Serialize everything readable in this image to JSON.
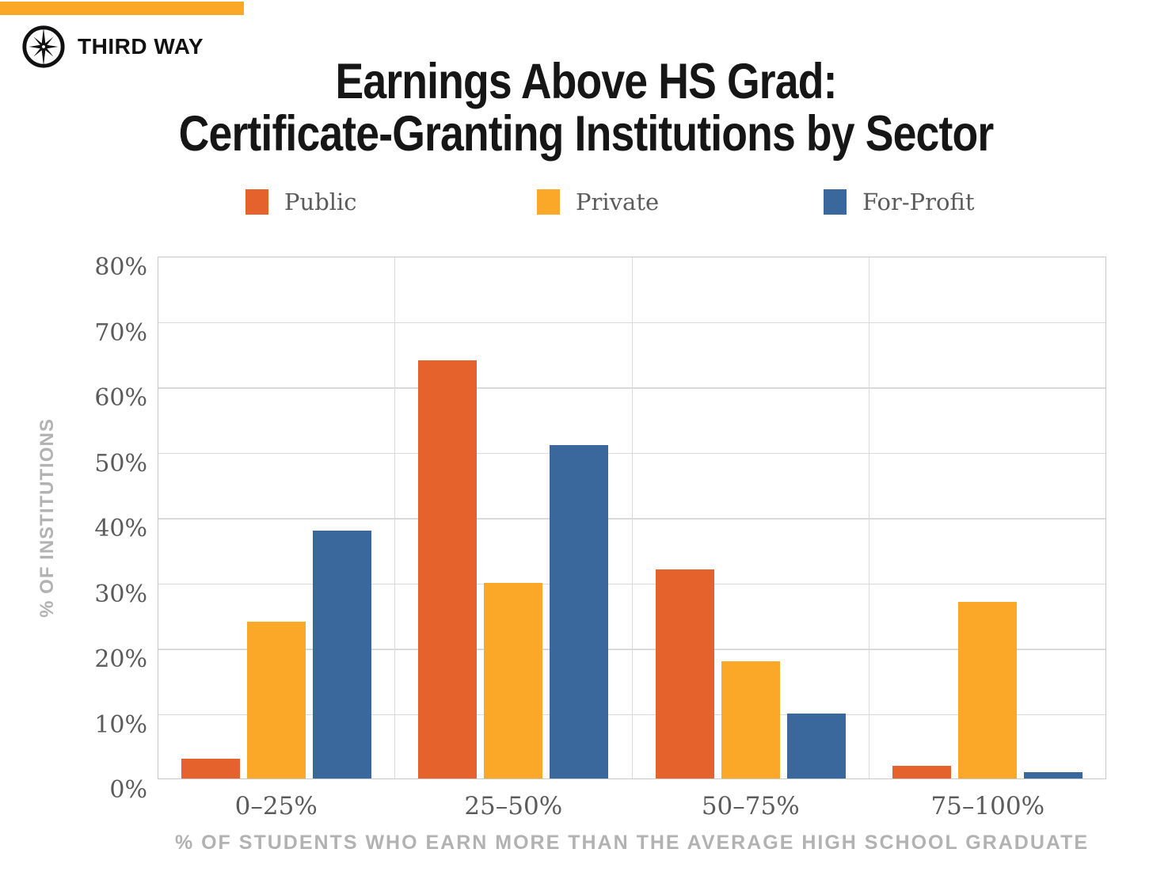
{
  "brand": {
    "logo_text": "THIRD WAY"
  },
  "title": {
    "line1": "Earnings Above HS Grad:",
    "line2": "Certificate-Granting Institutions by Sector"
  },
  "colors": {
    "accent": "#FBA829",
    "grid": "#DADADA",
    "border": "#C9C9C9",
    "tick_text": "#5B5B5B",
    "axis_title": "#B2B2B2",
    "title": "#161616",
    "brand": "#111111"
  },
  "chart_data": {
    "type": "bar",
    "title": "Earnings Above HS Grad: Certificate-Granting Institutions by Sector",
    "categories": [
      "0–25%",
      "25–50%",
      "50–75%",
      "75–100%"
    ],
    "series": [
      {
        "name": "Public",
        "color": "#E5622D",
        "values": [
          3,
          64,
          32,
          2
        ]
      },
      {
        "name": "Private",
        "color": "#FBA829",
        "values": [
          24,
          30,
          18,
          27
        ]
      },
      {
        "name": "For-Profit",
        "color": "#3A679C",
        "values": [
          38,
          51,
          10,
          1
        ]
      }
    ],
    "xlabel": "% OF STUDENTS WHO EARN MORE THAN THE AVERAGE HIGH SCHOOL GRADUATE",
    "ylabel": "% OF INSTITUTIONS",
    "ylim": [
      0,
      80
    ],
    "ytick_step": 10,
    "ytick_labels": [
      "0%",
      "10%",
      "20%",
      "30%",
      "40%",
      "50%",
      "60%",
      "70%",
      "80%"
    ],
    "grid": true,
    "legend_position": "top"
  }
}
